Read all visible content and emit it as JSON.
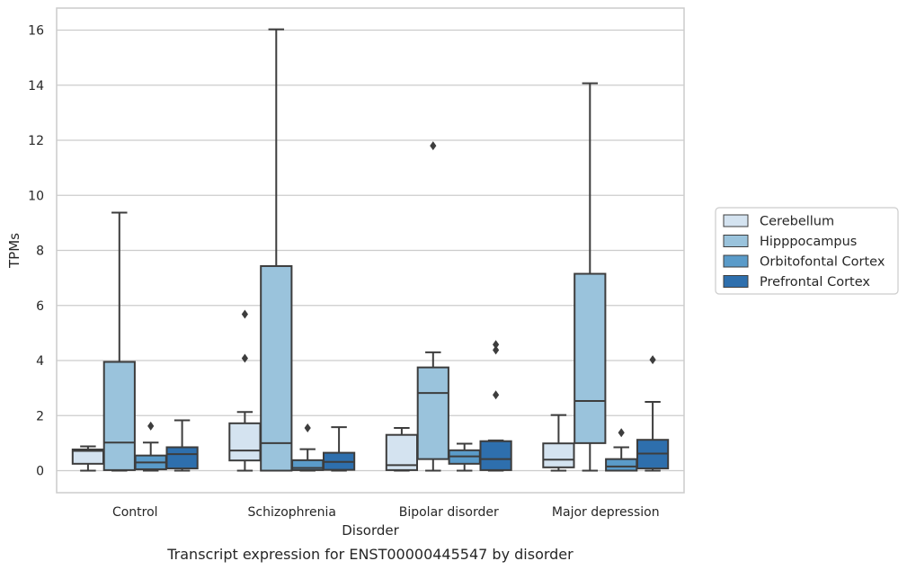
{
  "chart_data": {
    "type": "box",
    "xlabel": "Disorder",
    "ylabel": "TPMs",
    "caption": "Transcript expression for ENST00000445547 by disorder",
    "ylim": [
      -0.8,
      16.8
    ],
    "yticks": [
      "0",
      "2",
      "4",
      "6",
      "8",
      "10",
      "12",
      "14",
      "16"
    ],
    "grid": "horizontal",
    "legend_position": "right",
    "categories": [
      "Control",
      "Schizophrenia",
      "Bipolar disorder",
      "Major depression"
    ],
    "series": [
      {
        "name": "Cerebellum",
        "color": "#d4e3f0",
        "boxes": [
          {
            "whisker_low": 0.0,
            "q1": 0.25,
            "median": 0.72,
            "q3": 0.77,
            "whisker_high": 0.88,
            "outliers": []
          },
          {
            "whisker_low": 0.0,
            "q1": 0.37,
            "median": 0.73,
            "q3": 1.72,
            "whisker_high": 2.13,
            "outliers": [
              4.08,
              5.68
            ]
          },
          {
            "whisker_low": 0.0,
            "q1": 0.02,
            "median": 0.2,
            "q3": 1.3,
            "whisker_high": 1.55,
            "outliers": []
          },
          {
            "whisker_low": 0.0,
            "q1": 0.12,
            "median": 0.4,
            "q3": 0.99,
            "whisker_high": 2.02,
            "outliers": []
          }
        ]
      },
      {
        "name": "Hipppocampus",
        "color": "#9ac3dc",
        "boxes": [
          {
            "whisker_low": 0.0,
            "q1": 0.02,
            "median": 1.02,
            "q3": 3.95,
            "whisker_high": 9.37,
            "outliers": []
          },
          {
            "whisker_low": 0.0,
            "q1": 0.0,
            "median": 1.0,
            "q3": 7.43,
            "whisker_high": 16.03,
            "outliers": []
          },
          {
            "whisker_low": 0.0,
            "q1": 0.42,
            "median": 2.82,
            "q3": 3.75,
            "whisker_high": 4.3,
            "outliers": [
              11.8
            ]
          },
          {
            "whisker_low": 0.0,
            "q1": 1.0,
            "median": 2.53,
            "q3": 7.15,
            "whisker_high": 14.07,
            "outliers": []
          }
        ]
      },
      {
        "name": "Orbitofontal Cortex",
        "color": "#5a9bc9",
        "boxes": [
          {
            "whisker_low": 0.0,
            "q1": 0.05,
            "median": 0.3,
            "q3": 0.55,
            "whisker_high": 1.02,
            "outliers": [
              1.62
            ]
          },
          {
            "whisker_low": 0.0,
            "q1": 0.02,
            "median": 0.1,
            "q3": 0.38,
            "whisker_high": 0.78,
            "outliers": [
              1.55
            ]
          },
          {
            "whisker_low": 0.0,
            "q1": 0.25,
            "median": 0.52,
            "q3": 0.74,
            "whisker_high": 0.98,
            "outliers": []
          },
          {
            "whisker_low": 0.0,
            "q1": 0.0,
            "median": 0.15,
            "q3": 0.42,
            "whisker_high": 0.85,
            "outliers": [
              1.38
            ]
          }
        ]
      },
      {
        "name": "Prefrontal Cortex",
        "color": "#2e6fad",
        "boxes": [
          {
            "whisker_low": 0.0,
            "q1": 0.08,
            "median": 0.6,
            "q3": 0.85,
            "whisker_high": 1.83,
            "outliers": []
          },
          {
            "whisker_low": 0.0,
            "q1": 0.03,
            "median": 0.32,
            "q3": 0.65,
            "whisker_high": 1.58,
            "outliers": []
          },
          {
            "whisker_low": 0.0,
            "q1": 0.02,
            "median": 0.42,
            "q3": 1.07,
            "whisker_high": 1.1,
            "outliers": [
              2.75,
              4.38,
              4.58
            ]
          },
          {
            "whisker_low": 0.0,
            "q1": 0.08,
            "median": 0.62,
            "q3": 1.12,
            "whisker_high": 2.5,
            "outliers": [
              4.03
            ]
          }
        ]
      }
    ]
  }
}
